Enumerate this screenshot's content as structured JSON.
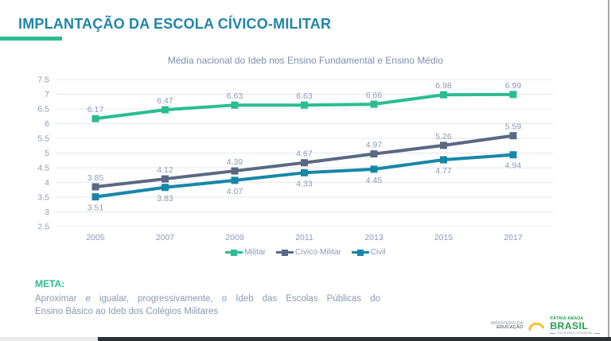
{
  "slide": {
    "title": "IMPLANTAÇÃO DA ESCOLA CÍVICO-MILITAR",
    "meta_heading": "META:",
    "meta_body_line1": "Aproximar e igualar, progressivamente, o Ideb das Escolas Públicas do",
    "meta_body_line2": "Ensino Básico ao Ideb dos Colégios Militares"
  },
  "chart_data": {
    "type": "line",
    "title": "Média nacional do Ideb nos Ensino Fundamental e Ensino Médio",
    "categories": [
      "2005",
      "2007",
      "2009",
      "2011",
      "2013",
      "2015",
      "2017"
    ],
    "series": [
      {
        "name": "Militar",
        "color": "#2ABD92",
        "values": [
          6.17,
          6.47,
          6.63,
          6.63,
          6.66,
          6.98,
          6.99
        ],
        "label_position": "above"
      },
      {
        "name": "Cívico-Militar",
        "color": "#5A6883",
        "values": [
          3.85,
          4.12,
          4.39,
          4.67,
          4.97,
          5.26,
          5.59
        ],
        "label_position": "above"
      },
      {
        "name": "Civil",
        "color": "#1787A8",
        "values": [
          3.51,
          3.83,
          4.07,
          4.33,
          4.45,
          4.77,
          4.94
        ],
        "label_position": "below"
      }
    ],
    "ylim": [
      2.5,
      7.5
    ],
    "ytick_step": 0.5,
    "yticks": [
      "2.5",
      "3",
      "3.5",
      "4",
      "4.5",
      "5",
      "5.5",
      "6",
      "6.5",
      "7",
      "7.5"
    ],
    "grid": true,
    "legend_position": "bottom",
    "marker": "square",
    "xlabel": "",
    "ylabel": ""
  },
  "footer": {
    "ministry_line1": "MINISTÉRIO DA",
    "ministry_line2": "EDUCAÇÃO",
    "brand_top": "PÁTRIA AMADA",
    "brand_name": "BRASIL",
    "brand_bottom": "GOVERNO FEDERAL"
  },
  "colors": {
    "title_blue": "#1E86A8",
    "accent_green": "#2ABD92",
    "series_slate": "#5A6883",
    "series_teal": "#1787A8",
    "axis_label": "#8E99B3",
    "gridline": "#E4E8EF",
    "brand_green": "#1E9E4F",
    "swoosh_yellow": "#F2C233"
  }
}
